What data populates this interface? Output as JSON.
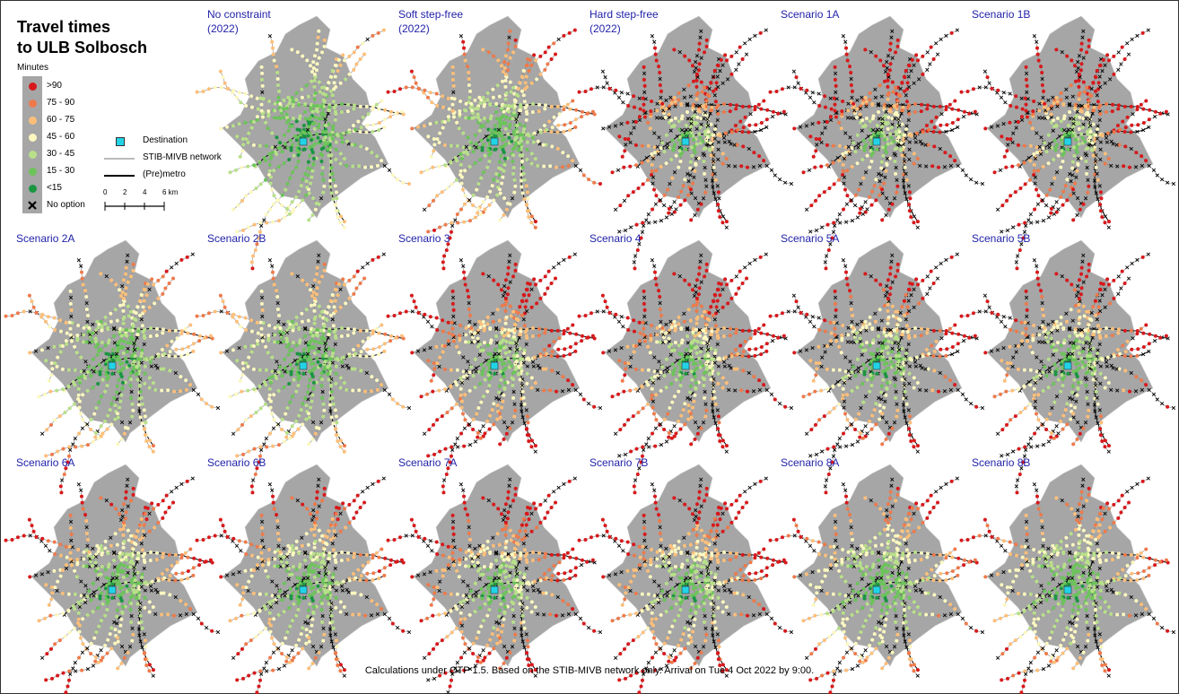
{
  "title_line1": "Travel times",
  "title_line2": "to ULB Solbosch",
  "legend": {
    "heading": "Minutes",
    "classes": [
      {
        "label": ">90",
        "color": "#d7191c"
      },
      {
        "label": "75 - 90",
        "color": "#ee7a4b"
      },
      {
        "label": "60 - 75",
        "color": "#fdbf7a"
      },
      {
        "label": "45 - 60",
        "color": "#fcf8c0"
      },
      {
        "label": "30 - 45",
        "color": "#b8e08a"
      },
      {
        "label": "15 - 30",
        "color": "#6cc45a"
      },
      {
        "label": "<15",
        "color": "#1a9641"
      }
    ],
    "no_option": "No option",
    "destination": "Destination",
    "destination_color": "#22d3e6",
    "network": "STIB-MIVB network",
    "premetro": "(Pre)metro",
    "scale_ticks": [
      "0",
      "2",
      "4",
      "6 km"
    ]
  },
  "maps": [
    {
      "title": "No constraint\n(2022)"
    },
    {
      "title": "Soft step-free\n(2022)"
    },
    {
      "title": "Hard step-free\n(2022)"
    },
    {
      "title": "Scenario 1A"
    },
    {
      "title": "Scenario 1B"
    },
    {
      "title": "Scenario 2A"
    },
    {
      "title": "Scenario 2B"
    },
    {
      "title": "Scenario 3"
    },
    {
      "title": "Scenario 4"
    },
    {
      "title": "Scenario 5A"
    },
    {
      "title": "Scenario 5B"
    },
    {
      "title": "Scenario 6A"
    },
    {
      "title": "Scenario 6B"
    },
    {
      "title": "Scenario 7A"
    },
    {
      "title": "Scenario 7B"
    },
    {
      "title": "Scenario 8A"
    },
    {
      "title": "Scenario 8B"
    }
  ],
  "footer": "Calculations under OTP 1.5. Based on the STIB-MIVB network only. Arrival on Tue 4 Oct 2022 by 9:00."
}
